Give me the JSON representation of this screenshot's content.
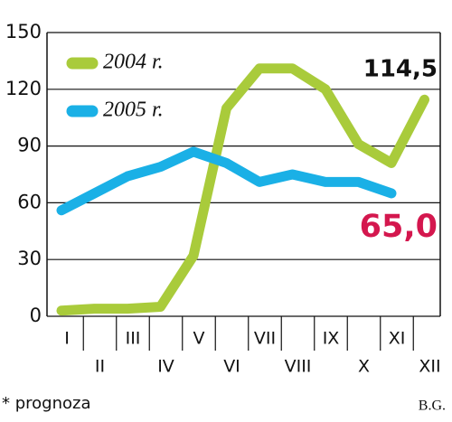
{
  "chart_data": {
    "type": "line",
    "categories": [
      "I",
      "II",
      "III",
      "IV",
      "V",
      "VI",
      "VII",
      "VIII",
      "IX",
      "X",
      "XI",
      "XII"
    ],
    "series": [
      {
        "name": "2004 r.",
        "color": "#a9cb3b",
        "values": [
          3,
          4,
          4,
          5,
          32,
          110,
          131,
          131,
          120,
          91,
          81,
          114.5
        ],
        "value_labels": [
          null,
          null,
          null,
          null,
          null,
          null,
          null,
          null,
          null,
          null,
          null,
          "114,5"
        ],
        "label_color": "#111111"
      },
      {
        "name": "2005 r.",
        "color": "#1ab0e6",
        "values": [
          56,
          65,
          74,
          79,
          87,
          81,
          71,
          75,
          71,
          71,
          65,
          null
        ],
        "value_labels": [
          null,
          null,
          null,
          null,
          null,
          null,
          null,
          null,
          null,
          null,
          "65,0",
          null
        ],
        "label_color": "#d4174e"
      }
    ],
    "ylim": [
      0,
      150
    ],
    "yticks": [
      0,
      30,
      60,
      90,
      120,
      150
    ],
    "grid": true,
    "note": "* prognoza",
    "source": "B.G."
  }
}
